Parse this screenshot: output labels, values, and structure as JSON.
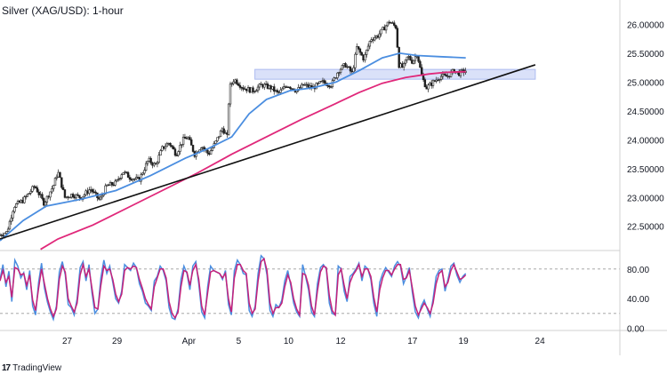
{
  "header": {
    "title": "Silver (XAG/USD): 1-hour"
  },
  "footer": {
    "brand_logo": "17",
    "brand_name": "TradingView"
  },
  "colors": {
    "candle": "#1f1f1f",
    "ma_fast": "#4b8ee0",
    "ma_slow": "#e0287a",
    "trendline": "#111111",
    "zone_fill": "#d4dcf8",
    "zone_stroke": "#9fb0ee",
    "stoch_k": "#4b8ee0",
    "stoch_d": "#c4217a",
    "grid_dash": "#9a9a9a"
  },
  "chart_data": [
    {
      "type": "candlestick",
      "title": "Silver (XAG/USD): 1-hour",
      "x_ticks": [
        {
          "i": 58,
          "label": "27"
        },
        {
          "i": 101,
          "label": "29"
        },
        {
          "i": 163,
          "label": "Apr"
        },
        {
          "i": 206,
          "label": "5"
        },
        {
          "i": 249,
          "label": "10"
        },
        {
          "i": 294,
          "label": "12"
        },
        {
          "i": 356,
          "label": "17"
        },
        {
          "i": 400,
          "label": "19"
        },
        {
          "i": 466,
          "label": "24"
        }
      ],
      "y_ticks": [
        "26.00000",
        "25.50000",
        "25.00000",
        "24.50000",
        "24.00000",
        "23.50000",
        "23.00000",
        "22.50000"
      ],
      "y_tick_values": [
        26.0,
        25.5,
        25.0,
        24.5,
        24.0,
        23.5,
        23.0,
        22.5
      ],
      "ylim": [
        22.08,
        26.3
      ],
      "x_count": 535,
      "close_anchors": [
        {
          "i": 0,
          "v": 22.35
        },
        {
          "i": 6,
          "v": 22.4
        },
        {
          "i": 12,
          "v": 22.85
        },
        {
          "i": 20,
          "v": 22.95
        },
        {
          "i": 30,
          "v": 23.2
        },
        {
          "i": 38,
          "v": 22.9
        },
        {
          "i": 46,
          "v": 23.2
        },
        {
          "i": 50,
          "v": 23.45
        },
        {
          "i": 56,
          "v": 23.0
        },
        {
          "i": 62,
          "v": 23.05
        },
        {
          "i": 70,
          "v": 23.0
        },
        {
          "i": 78,
          "v": 23.15
        },
        {
          "i": 86,
          "v": 22.95
        },
        {
          "i": 92,
          "v": 23.2
        },
        {
          "i": 100,
          "v": 23.25
        },
        {
          "i": 106,
          "v": 23.45
        },
        {
          "i": 112,
          "v": 23.35
        },
        {
          "i": 120,
          "v": 23.3
        },
        {
          "i": 128,
          "v": 23.65
        },
        {
          "i": 134,
          "v": 23.55
        },
        {
          "i": 140,
          "v": 23.85
        },
        {
          "i": 146,
          "v": 23.95
        },
        {
          "i": 152,
          "v": 23.75
        },
        {
          "i": 158,
          "v": 24.0
        },
        {
          "i": 162,
          "v": 24.05
        },
        {
          "i": 168,
          "v": 23.75
        },
        {
          "i": 174,
          "v": 23.9
        },
        {
          "i": 180,
          "v": 23.75
        },
        {
          "i": 186,
          "v": 23.95
        },
        {
          "i": 192,
          "v": 24.2
        },
        {
          "i": 196,
          "v": 24.05
        },
        {
          "i": 198,
          "v": 24.9
        },
        {
          "i": 202,
          "v": 25.05
        },
        {
          "i": 210,
          "v": 24.9
        },
        {
          "i": 218,
          "v": 24.85
        },
        {
          "i": 226,
          "v": 24.95
        },
        {
          "i": 234,
          "v": 24.9
        },
        {
          "i": 240,
          "v": 24.8
        },
        {
          "i": 248,
          "v": 24.95
        },
        {
          "i": 256,
          "v": 24.85
        },
        {
          "i": 262,
          "v": 24.95
        },
        {
          "i": 270,
          "v": 24.9
        },
        {
          "i": 278,
          "v": 25.0
        },
        {
          "i": 286,
          "v": 24.95
        },
        {
          "i": 292,
          "v": 25.2
        },
        {
          "i": 298,
          "v": 25.3
        },
        {
          "i": 304,
          "v": 25.15
        },
        {
          "i": 308,
          "v": 25.6
        },
        {
          "i": 314,
          "v": 25.4
        },
        {
          "i": 320,
          "v": 25.75
        },
        {
          "i": 326,
          "v": 25.8
        },
        {
          "i": 330,
          "v": 25.9
        },
        {
          "i": 336,
          "v": 26.05
        },
        {
          "i": 342,
          "v": 25.95
        },
        {
          "i": 344,
          "v": 25.3
        },
        {
          "i": 348,
          "v": 25.25
        },
        {
          "i": 352,
          "v": 25.45
        },
        {
          "i": 356,
          "v": 25.35
        },
        {
          "i": 360,
          "v": 25.5
        },
        {
          "i": 364,
          "v": 25.1
        },
        {
          "i": 368,
          "v": 24.9
        },
        {
          "i": 374,
          "v": 25.0
        },
        {
          "i": 380,
          "v": 25.1
        },
        {
          "i": 386,
          "v": 25.1
        },
        {
          "i": 392,
          "v": 25.2
        },
        {
          "i": 396,
          "v": 25.15
        },
        {
          "i": 402,
          "v": 25.2
        }
      ],
      "ma_fast": {
        "points": [
          {
            "i": 0,
            "v": 22.25
          },
          {
            "i": 20,
            "v": 22.6
          },
          {
            "i": 40,
            "v": 22.85
          },
          {
            "i": 70,
            "v": 22.97
          },
          {
            "i": 100,
            "v": 23.12
          },
          {
            "i": 130,
            "v": 23.38
          },
          {
            "i": 160,
            "v": 23.68
          },
          {
            "i": 180,
            "v": 23.85
          },
          {
            "i": 200,
            "v": 24.05
          },
          {
            "i": 215,
            "v": 24.45
          },
          {
            "i": 230,
            "v": 24.7
          },
          {
            "i": 250,
            "v": 24.85
          },
          {
            "i": 270,
            "v": 24.9
          },
          {
            "i": 290,
            "v": 25.0
          },
          {
            "i": 310,
            "v": 25.2
          },
          {
            "i": 330,
            "v": 25.42
          },
          {
            "i": 345,
            "v": 25.5
          },
          {
            "i": 360,
            "v": 25.46
          },
          {
            "i": 380,
            "v": 25.44
          },
          {
            "i": 402,
            "v": 25.42
          }
        ]
      },
      "ma_slow": {
        "points": [
          {
            "i": 35,
            "v": 22.1
          },
          {
            "i": 50,
            "v": 22.28
          },
          {
            "i": 80,
            "v": 22.52
          },
          {
            "i": 110,
            "v": 22.82
          },
          {
            "i": 140,
            "v": 23.12
          },
          {
            "i": 170,
            "v": 23.42
          },
          {
            "i": 200,
            "v": 23.75
          },
          {
            "i": 230,
            "v": 24.05
          },
          {
            "i": 260,
            "v": 24.35
          },
          {
            "i": 290,
            "v": 24.63
          },
          {
            "i": 310,
            "v": 24.82
          },
          {
            "i": 330,
            "v": 24.98
          },
          {
            "i": 350,
            "v": 25.08
          },
          {
            "i": 370,
            "v": 25.14
          },
          {
            "i": 385,
            "v": 25.17
          },
          {
            "i": 402,
            "v": 25.18
          }
        ]
      },
      "trendline": {
        "from": {
          "i": 0,
          "v": 22.28
        },
        "to": {
          "i": 462,
          "v": 25.3
        }
      },
      "resistance_zone": {
        "i0": 220,
        "i1": 462,
        "low": 25.05,
        "high": 25.22
      }
    },
    {
      "type": "line",
      "name": "stochastic",
      "y_ticks": [
        "80.00",
        "40.00",
        "0.00"
      ],
      "y_tick_values": [
        80,
        40,
        0
      ],
      "ylim": [
        -3,
        105
      ],
      "dashed_levels": [
        80,
        20
      ],
      "series": [
        {
          "key": "k",
          "values": [
            66,
            86,
            56,
            77,
            36,
            92,
            84,
            68,
            75,
            52,
            78,
            30,
            18,
            62,
            88,
            54,
            35,
            22,
            12,
            30,
            76,
            90,
            72,
            32,
            28,
            18,
            40,
            82,
            90,
            64,
            86,
            48,
            20,
            26,
            68,
            92,
            74,
            84,
            62,
            40,
            34,
            50,
            86,
            82,
            78,
            88,
            82,
            60,
            50,
            34,
            30,
            24,
            64,
            70,
            84,
            78,
            64,
            28,
            14,
            12,
            26,
            66,
            84,
            74,
            52,
            84,
            90,
            60,
            22,
            14,
            56,
            84,
            78,
            76,
            74,
            66,
            78,
            32,
            18,
            78,
            92,
            86,
            74,
            72,
            24,
            16,
            30,
            74,
            98,
            94,
            72,
            24,
            16,
            32,
            28,
            38,
            64,
            78,
            58,
            34,
            22,
            16,
            86,
            70,
            52,
            22,
            16,
            60,
            82,
            86,
            80,
            34,
            20,
            18,
            84,
            80,
            50,
            36,
            70,
            74,
            80,
            88,
            64,
            84,
            80,
            66,
            34,
            16,
            62,
            74,
            82,
            76,
            70,
            84,
            90,
            84,
            60,
            70,
            82,
            48,
            22,
            14,
            30,
            38,
            26,
            16,
            40,
            70,
            78,
            80,
            50,
            66,
            84,
            88,
            72,
            62,
            70,
            74
          ]
        },
        {
          "key": "d",
          "values": [
            64,
            78,
            62,
            70,
            42,
            82,
            80,
            72,
            74,
            58,
            72,
            38,
            24,
            54,
            80,
            60,
            40,
            26,
            16,
            26,
            66,
            84,
            76,
            40,
            30,
            22,
            34,
            72,
            86,
            70,
            80,
            54,
            28,
            26,
            58,
            84,
            78,
            80,
            66,
            46,
            36,
            46,
            78,
            82,
            80,
            84,
            82,
            66,
            54,
            40,
            32,
            26,
            56,
            68,
            80,
            80,
            68,
            36,
            20,
            14,
            22,
            56,
            78,
            76,
            58,
            78,
            86,
            66,
            30,
            18,
            48,
            76,
            78,
            76,
            74,
            68,
            74,
            40,
            22,
            68,
            86,
            86,
            78,
            74,
            34,
            20,
            26,
            64,
            90,
            94,
            78,
            34,
            20,
            28,
            28,
            34,
            56,
            72,
            62,
            40,
            26,
            18,
            74,
            72,
            58,
            30,
            18,
            50,
            76,
            84,
            82,
            44,
            24,
            18,
            72,
            80,
            58,
            40,
            62,
            72,
            78,
            86,
            70,
            80,
            80,
            70,
            42,
            22,
            52,
            68,
            78,
            78,
            72,
            80,
            86,
            86,
            66,
            68,
            78,
            54,
            30,
            18,
            26,
            34,
            28,
            20,
            34,
            60,
            74,
            78,
            56,
            62,
            78,
            86,
            76,
            66,
            68,
            72
          ]
        }
      ]
    }
  ]
}
